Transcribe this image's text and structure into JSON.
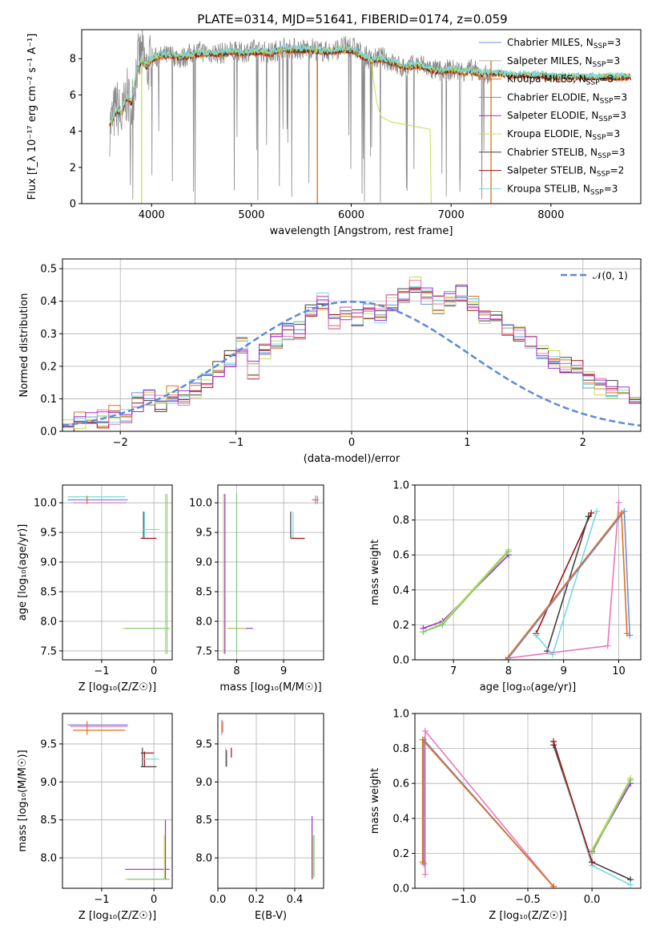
{
  "figure_title": "PLATE=0314, MJD=51641, FIBERID=0174, z=0.059",
  "colors": {
    "Chabrier MILES": "#6d8fe0",
    "Salpeter MILES": "#b0b0b0",
    "Kroupa MILES": "#e0701a",
    "Chabrier ELODIE": "#8a8a8a",
    "Salpeter ELODIE": "#9b30c8",
    "Kroupa ELODIE": "#c8dc50",
    "Chabrier STELIB": "#404040",
    "Salpeter STELIB": "#a01010",
    "Kroupa STELIB": "#78d8e0",
    "pink": "#e878b8",
    "green": "#80c880",
    "normal": "#5b8bd8"
  },
  "chart_data": [
    {
      "id": "spectrum",
      "type": "line",
      "xlabel": "wavelength [Angstrom, rest frame]",
      "ylabel": "Flux [f_λ 10⁻¹⁷ erg cm⁻² s⁻¹ A⁻¹]",
      "xlim": [
        3300,
        8900
      ],
      "ylim": [
        0,
        9.6
      ],
      "xticks": [
        4000,
        5000,
        6000,
        7000,
        8000
      ],
      "yticks": [
        0,
        2,
        4,
        6,
        8
      ],
      "grid": false,
      "legend_position": "top-right",
      "legend": [
        {
          "label": "Chabrier MILES, N",
          "sub": "SSP",
          "tail": "=3",
          "color": "#6d8fe0"
        },
        {
          "label": "Salpeter MILES, N",
          "sub": "SSP",
          "tail": "=3",
          "color": "#b0b0b0"
        },
        {
          "label": "Kroupa MILES, N",
          "sub": "SSP",
          "tail": "=3",
          "color": "#e0701a"
        },
        {
          "label": "Chabrier ELODIE, N",
          "sub": "SSP",
          "tail": "=3",
          "color": "#8a8a8a"
        },
        {
          "label": "Salpeter ELODIE, N",
          "sub": "SSP",
          "tail": "=3",
          "color": "#9b30c8"
        },
        {
          "label": "Kroupa ELODIE, N",
          "sub": "SSP",
          "tail": "=3",
          "color": "#c8dc50"
        },
        {
          "label": "Chabrier STELIB, N",
          "sub": "SSP",
          "tail": "=3",
          "color": "#404040"
        },
        {
          "label": "Salpeter STELIB, N",
          "sub": "SSP",
          "tail": "=2",
          "color": "#a01010"
        },
        {
          "label": "Kroupa STELIB, N",
          "sub": "SSP",
          "tail": "=3",
          "color": "#78d8e0"
        }
      ],
      "series": [
        {
          "name": "data",
          "color": "#8a8a8a",
          "x": [
            3580,
            3650,
            3700,
            3750,
            3800,
            3850,
            3900,
            3950,
            4000,
            4100,
            4200,
            4300,
            4400,
            4500,
            4600,
            4700,
            4800,
            4900,
            5000,
            5100,
            5200,
            5300,
            5400,
            5500,
            5600,
            5700,
            5800,
            5900,
            6000,
            6100,
            6200,
            6300,
            6400,
            6500,
            6600,
            6700,
            6800,
            6900,
            7000,
            7100,
            7200,
            7300,
            7400
          ],
          "y": [
            4.2,
            5.4,
            4.6,
            6.0,
            5.2,
            7.6,
            8.2,
            7.4,
            8.0,
            8.1,
            8.2,
            8.0,
            8.3,
            8.4,
            8.3,
            8.3,
            8.4,
            8.3,
            8.5,
            8.4,
            8.3,
            8.6,
            8.6,
            8.5,
            8.6,
            8.4,
            8.4,
            8.6,
            8.7,
            8.3,
            7.9,
            8.1,
            7.8,
            7.5,
            7.6,
            7.7,
            7.4,
            7.3,
            7.4,
            7.3,
            7.4,
            7.2,
            7.0
          ]
        },
        {
          "name": "model",
          "color": "#78d8e0",
          "x": [
            3580,
            3650,
            3700,
            3750,
            3800,
            3850,
            3900,
            3950,
            4000,
            4100,
            4200,
            4300,
            4400,
            4500,
            4600,
            4700,
            4800,
            4900,
            5000,
            5100,
            5200,
            5300,
            5400,
            5500,
            5600,
            5700,
            5800,
            5900,
            6000,
            6100,
            6200,
            6300,
            6400,
            6500,
            6600,
            6700,
            6800,
            6900,
            7000,
            7100,
            7200,
            7300,
            7400,
            7500,
            7600,
            7700,
            7800,
            7900,
            8000,
            8100,
            8200,
            8300,
            8400,
            8500,
            8600,
            8700,
            8800
          ],
          "y": [
            4.3,
            5.2,
            5.0,
            5.9,
            5.6,
            7.3,
            7.9,
            7.6,
            8.0,
            8.2,
            8.2,
            8.1,
            8.2,
            8.3,
            8.3,
            8.3,
            8.4,
            8.3,
            8.4,
            8.4,
            8.3,
            8.5,
            8.5,
            8.5,
            8.5,
            8.4,
            8.4,
            8.5,
            8.5,
            8.2,
            7.9,
            8.0,
            7.8,
            7.6,
            7.6,
            7.6,
            7.4,
            7.3,
            7.4,
            7.3,
            7.3,
            7.2,
            7.2,
            7.2,
            7.1,
            7.1,
            7.1,
            7.1,
            7.0,
            7.0,
            7.0,
            7.0,
            7.0,
            7.0,
            7.0,
            7.0,
            7.0
          ]
        },
        {
          "name": "elodie-model",
          "color": "#c8dc50",
          "x": [
            6200,
            6230,
            6260,
            6300,
            6400,
            6500,
            6600,
            6700,
            6790,
            6800
          ],
          "y": [
            8.0,
            6.5,
            5.5,
            4.8,
            4.5,
            4.4,
            4.3,
            4.2,
            4.1,
            0.0
          ]
        }
      ]
    },
    {
      "id": "residuals",
      "type": "line",
      "xlabel": "(data-model)/error",
      "ylabel": "Normed distribution",
      "xlim": [
        -2.5,
        2.5
      ],
      "ylim": [
        0,
        0.53
      ],
      "xticks": [
        -2,
        -1,
        0,
        1,
        2
      ],
      "yticks": [
        0.0,
        0.1,
        0.2,
        0.3,
        0.4,
        0.5
      ],
      "grid": true,
      "legend_position": "top-right",
      "legend": [
        {
          "label": "𝒩(0, 1)",
          "color": "#5b8bd8",
          "style": "dashed"
        }
      ],
      "bin_width": 0.1,
      "bin_start": -2.5,
      "hist_values": [
        0.02,
        0.03,
        0.03,
        0.04,
        0.05,
        0.05,
        0.09,
        0.1,
        0.09,
        0.11,
        0.11,
        0.13,
        0.15,
        0.19,
        0.22,
        0.26,
        0.19,
        0.25,
        0.28,
        0.31,
        0.31,
        0.36,
        0.4,
        0.34,
        0.36,
        0.35,
        0.37,
        0.36,
        0.39,
        0.41,
        0.45,
        0.42,
        0.39,
        0.4,
        0.42,
        0.39,
        0.36,
        0.34,
        0.31,
        0.3,
        0.27,
        0.24,
        0.22,
        0.2,
        0.19,
        0.16,
        0.14,
        0.13,
        0.12,
        0.1,
        0.09
      ]
    },
    {
      "id": "age-vs-Z",
      "type": "scatter",
      "xlabel": "Z [log₁₀(Z/Z☉)]",
      "ylabel": "age  [log₁₀(age/yr)]",
      "xlim": [
        -1.75,
        0.35
      ],
      "ylim": [
        7.35,
        10.3
      ],
      "xticks": [
        -1,
        0
      ],
      "yticks": [
        7.5,
        8.0,
        8.5,
        9.0,
        9.5,
        10.0
      ],
      "grid": true
    },
    {
      "id": "age-vs-mass",
      "type": "scatter",
      "xlabel": "mass [log₁₀(M/M☉)]",
      "ylabel": "",
      "xlim": [
        7.6,
        9.85
      ],
      "ylim": [
        7.35,
        10.3
      ],
      "xticks": [
        8,
        9
      ],
      "yticks": [
        7.5,
        8.0,
        8.5,
        9.0,
        9.5,
        10.0
      ],
      "grid": true
    },
    {
      "id": "weight-vs-age",
      "type": "line",
      "xlabel": "age  [log₁₀(age/yr)]",
      "ylabel": "mass weight",
      "xlim": [
        6.3,
        10.4
      ],
      "ylim": [
        0,
        1.0
      ],
      "xticks": [
        7,
        8,
        9,
        10
      ],
      "yticks": [
        0.0,
        0.2,
        0.4,
        0.6,
        0.8,
        1.0
      ],
      "grid": true,
      "series": [
        {
          "color": "#9b30c8",
          "x": [
            6.45,
            6.8,
            8.0
          ],
          "y": [
            0.18,
            0.22,
            0.6
          ]
        },
        {
          "color": "#c8dc50",
          "x": [
            6.45,
            6.8,
            8.0
          ],
          "y": [
            0.16,
            0.21,
            0.63
          ]
        },
        {
          "color": "#80c880",
          "x": [
            6.45,
            6.8,
            8.0
          ],
          "y": [
            0.16,
            0.2,
            0.62
          ]
        },
        {
          "color": "#a01010",
          "x": [
            8.5,
            9.5
          ],
          "y": [
            0.15,
            0.84
          ]
        },
        {
          "color": "#404040",
          "x": [
            8.7,
            9.45
          ],
          "y": [
            0.05,
            0.82
          ]
        },
        {
          "color": "#78d8e0",
          "x": [
            8.5,
            8.8,
            9.6
          ],
          "y": [
            0.14,
            0.03,
            0.85
          ]
        },
        {
          "color": "#e878b8",
          "x": [
            8.0,
            9.8,
            10.0
          ],
          "y": [
            0.01,
            0.08,
            0.9
          ]
        },
        {
          "color": "#6d8fe0",
          "x": [
            8.0,
            10.1,
            10.2
          ],
          "y": [
            0.01,
            0.85,
            0.14
          ]
        },
        {
          "color": "#e0701a",
          "x": [
            7.95,
            10.05,
            10.15
          ],
          "y": [
            0.0,
            0.84,
            0.15
          ]
        }
      ]
    },
    {
      "id": "mass-vs-Z",
      "type": "scatter",
      "xlabel": "Z [log₁₀(Z/Z☉)]",
      "ylabel": "mass [log₁₀(M/M☉)]",
      "xlim": [
        -1.75,
        0.35
      ],
      "ylim": [
        7.6,
        9.9
      ],
      "xticks": [
        -1,
        0
      ],
      "yticks": [
        8.0,
        8.5,
        9.0,
        9.5
      ],
      "grid": true
    },
    {
      "id": "mass-vs-ebv",
      "type": "scatter",
      "xlabel": "E(B-V)",
      "ylabel": "",
      "xlim": [
        0.0,
        0.55
      ],
      "ylim": [
        7.6,
        9.9
      ],
      "xticks": [
        0.0,
        0.2,
        0.4
      ],
      "yticks": [
        8.0,
        8.5,
        9.0,
        9.5
      ],
      "grid": true
    },
    {
      "id": "weight-vs-Z",
      "type": "line",
      "xlabel": "Z [log₁₀(Z/Z☉)]",
      "ylabel": "mass weight",
      "xlim": [
        -1.38,
        0.38
      ],
      "ylim": [
        0,
        1.0
      ],
      "xticks": [
        -1.0,
        -0.5,
        0.0
      ],
      "yticks": [
        0.0,
        0.2,
        0.4,
        0.6,
        0.8,
        1.0
      ],
      "grid": true,
      "series": [
        {
          "color": "#e878b8",
          "x": [
            -1.3,
            -1.3,
            -0.3
          ],
          "y": [
            0.08,
            0.9,
            0.01
          ]
        },
        {
          "color": "#6d8fe0",
          "x": [
            -1.31,
            -1.31,
            -0.3
          ],
          "y": [
            0.14,
            0.85,
            0.01
          ]
        },
        {
          "color": "#e0701a",
          "x": [
            -1.32,
            -1.32,
            -0.3
          ],
          "y": [
            0.15,
            0.85,
            0.01
          ]
        },
        {
          "color": "#404040",
          "x": [
            -0.3,
            0.0,
            0.3
          ],
          "y": [
            0.82,
            0.15,
            0.05
          ]
        },
        {
          "color": "#78d8e0",
          "x": [
            -0.3,
            0.0,
            0.3
          ],
          "y": [
            0.84,
            0.13,
            0.02
          ]
        },
        {
          "color": "#a01010",
          "x": [
            -0.3,
            0.0
          ],
          "y": [
            0.84,
            0.15
          ]
        },
        {
          "color": "#9b30c8",
          "x": [
            0.0,
            0.3
          ],
          "y": [
            0.21,
            0.6
          ]
        },
        {
          "color": "#c8dc50",
          "x": [
            0.0,
            0.3
          ],
          "y": [
            0.22,
            0.63
          ]
        },
        {
          "color": "#80c880",
          "x": [
            0.0,
            0.3
          ],
          "y": [
            0.2,
            0.62
          ]
        }
      ]
    }
  ]
}
